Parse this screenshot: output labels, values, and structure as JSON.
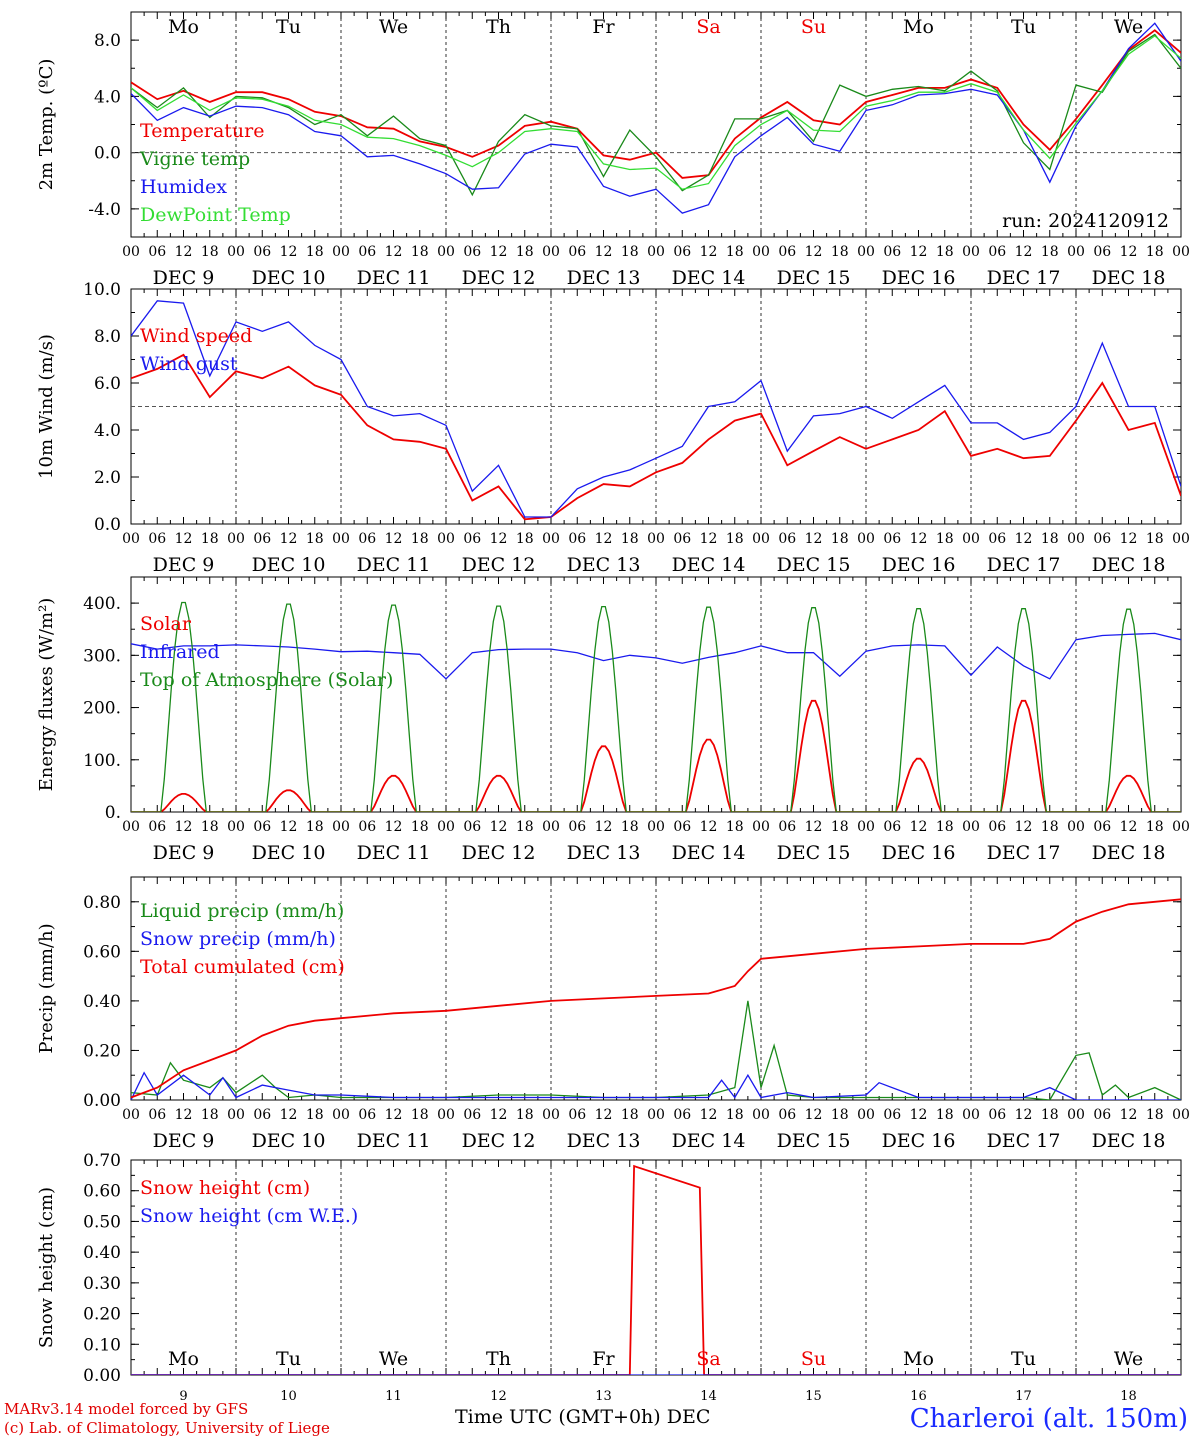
{
  "meta": {
    "footer_line1": "MARv3.14 model forced by GFS",
    "footer_line2": "(c) Lab. of Climatology, University of Liege",
    "station": "Charleroi (alt. 150m)",
    "time_axis_title": "Time UTC (GMT+0h) DEC",
    "run": "run: 2024120912"
  },
  "colors": {
    "red": "#ee0000",
    "green": "#1a8a1a",
    "blue": "#1a1aee",
    "lightgreen": "#33dd33",
    "weekend": "#ee0000"
  },
  "days": {
    "weekdays": [
      "Mo",
      "Tu",
      "We",
      "Th",
      "Fr",
      "Sa",
      "Su",
      "Mo",
      "Tu",
      "We"
    ],
    "weekend_index": [
      5,
      6
    ],
    "date_labels": [
      "DEC  9",
      "DEC 10",
      "DEC 11",
      "DEC 12",
      "DEC 13",
      "DEC 14",
      "DEC 15",
      "DEC 16",
      "DEC 17",
      "DEC 18"
    ],
    "day_numbers": [
      "9",
      "10",
      "11",
      "12",
      "13",
      "14",
      "15",
      "16",
      "17",
      "18"
    ],
    "hour_ticks": [
      "00",
      "06",
      "12",
      "18"
    ],
    "final_tick": "00"
  },
  "chart_data": [
    {
      "type": "line",
      "id": "temp",
      "ylabel": "2m Temp. (ºC)",
      "ylim": [
        -6,
        10
      ],
      "yticks": [
        "-4.0",
        "0.0",
        "4.0",
        "8.0"
      ],
      "ytick_values": [
        -4,
        0,
        4,
        8
      ],
      "ref_line": 0,
      "x_hours_start": 0,
      "x_hours_end": 240,
      "annotation": "run: 2024120912",
      "series": [
        {
          "name": "Temperature",
          "color": "red",
          "x": [
            0,
            6,
            12,
            18,
            24,
            30,
            36,
            42,
            48,
            54,
            60,
            66,
            72,
            78,
            84,
            90,
            96,
            102,
            108,
            114,
            120,
            126,
            132,
            138,
            144,
            150,
            156,
            162,
            168,
            174,
            180,
            186,
            192,
            198,
            204,
            210,
            216,
            222,
            228,
            234,
            240
          ],
          "values": [
            5.0,
            3.8,
            4.4,
            3.6,
            4.3,
            4.3,
            3.8,
            2.9,
            2.6,
            1.8,
            1.7,
            0.8,
            0.4,
            -0.3,
            0.5,
            1.9,
            2.2,
            1.7,
            -0.2,
            -0.5,
            0.0,
            -1.8,
            -1.6,
            1.0,
            2.5,
            3.6,
            2.3,
            2.0,
            3.6,
            4.1,
            4.6,
            4.6,
            5.2,
            4.6,
            2.0,
            0.2,
            2.4,
            4.8,
            7.3,
            8.7,
            7.1
          ]
        },
        {
          "name": "Vigne temp",
          "color": "green",
          "x": [
            0,
            6,
            12,
            18,
            24,
            30,
            36,
            42,
            48,
            54,
            60,
            66,
            72,
            78,
            84,
            90,
            96,
            102,
            108,
            114,
            120,
            126,
            132,
            138,
            144,
            150,
            156,
            162,
            168,
            174,
            180,
            186,
            192,
            198,
            204,
            210,
            216,
            222,
            228,
            234,
            240
          ],
          "values": [
            4.6,
            3.2,
            4.6,
            2.5,
            4.0,
            3.9,
            3.2,
            2.0,
            2.7,
            1.2,
            2.6,
            1.0,
            0.5,
            -3.0,
            0.8,
            2.7,
            1.9,
            1.7,
            -1.7,
            1.6,
            -0.3,
            -2.7,
            -1.6,
            2.4,
            2.4,
            3.0,
            0.8,
            4.8,
            4.0,
            4.5,
            4.7,
            4.4,
            5.8,
            4.4,
            0.7,
            -1.2,
            4.8,
            4.3,
            7.2,
            8.4,
            6.0
          ]
        },
        {
          "name": "Humidex",
          "color": "blue",
          "x": [
            0,
            6,
            12,
            18,
            24,
            30,
            36,
            42,
            48,
            54,
            60,
            66,
            72,
            78,
            84,
            90,
            96,
            102,
            108,
            114,
            120,
            126,
            132,
            138,
            144,
            150,
            156,
            162,
            168,
            174,
            180,
            186,
            192,
            198,
            204,
            210,
            216,
            222,
            228,
            234,
            240
          ],
          "values": [
            4.2,
            2.3,
            3.2,
            2.6,
            3.3,
            3.2,
            2.7,
            1.5,
            1.2,
            -0.3,
            -0.2,
            -0.8,
            -1.5,
            -2.6,
            -2.5,
            -0.1,
            0.6,
            0.4,
            -2.4,
            -3.1,
            -2.6,
            -4.3,
            -3.7,
            -0.3,
            1.2,
            2.5,
            0.6,
            0.1,
            3.0,
            3.4,
            4.1,
            4.2,
            4.5,
            4.1,
            1.6,
            -2.1,
            1.9,
            4.4,
            7.4,
            9.2,
            6.5
          ]
        },
        {
          "name": "DewPoint Temp",
          "color": "lightgreen",
          "x": [
            0,
            6,
            12,
            18,
            24,
            30,
            36,
            42,
            48,
            54,
            60,
            66,
            72,
            78,
            84,
            90,
            96,
            102,
            108,
            114,
            120,
            126,
            132,
            138,
            144,
            150,
            156,
            162,
            168,
            174,
            180,
            186,
            192,
            198,
            204,
            210,
            216,
            222,
            228,
            234,
            240
          ],
          "values": [
            4.6,
            3.0,
            4.1,
            3.0,
            3.9,
            3.8,
            3.3,
            2.3,
            2.0,
            1.1,
            1.0,
            0.5,
            -0.2,
            -1.0,
            0.0,
            1.5,
            1.7,
            1.5,
            -0.8,
            -1.2,
            -1.1,
            -2.6,
            -2.2,
            0.5,
            2.0,
            3.0,
            1.6,
            1.5,
            3.3,
            3.7,
            4.3,
            4.3,
            4.9,
            4.3,
            1.6,
            -0.4,
            2.1,
            4.4,
            7.0,
            8.3,
            6.7
          ]
        }
      ]
    },
    {
      "type": "line",
      "id": "wind",
      "ylabel": "10m Wind (m/s)",
      "ylim": [
        0,
        10
      ],
      "yticks": [
        "0.0",
        "2.0",
        "4.0",
        "6.0",
        "8.0",
        "10.0"
      ],
      "ytick_values": [
        0,
        2,
        4,
        6,
        8,
        10
      ],
      "ref_line": 5,
      "series": [
        {
          "name": "Wind speed",
          "color": "red",
          "x": [
            0,
            6,
            12,
            18,
            24,
            30,
            36,
            42,
            48,
            54,
            60,
            66,
            72,
            78,
            84,
            90,
            96,
            102,
            108,
            114,
            120,
            126,
            132,
            138,
            144,
            150,
            156,
            162,
            168,
            174,
            180,
            186,
            192,
            198,
            204,
            210,
            216,
            222,
            228,
            234,
            240
          ],
          "values": [
            6.2,
            6.6,
            7.2,
            5.4,
            6.5,
            6.2,
            6.7,
            5.9,
            5.5,
            4.2,
            3.6,
            3.5,
            3.2,
            1.0,
            1.6,
            0.2,
            0.3,
            1.1,
            1.7,
            1.6,
            2.2,
            2.6,
            3.6,
            4.4,
            4.7,
            2.5,
            3.1,
            3.7,
            3.2,
            3.6,
            4.0,
            4.8,
            2.9,
            3.2,
            2.8,
            2.9,
            4.4,
            6.0,
            4.0,
            4.3,
            1.2
          ]
        },
        {
          "name": "Wind gust",
          "color": "blue",
          "x": [
            0,
            6,
            12,
            18,
            24,
            30,
            36,
            42,
            48,
            54,
            60,
            66,
            72,
            78,
            84,
            90,
            96,
            102,
            108,
            114,
            120,
            126,
            132,
            138,
            144,
            150,
            156,
            162,
            168,
            174,
            180,
            186,
            192,
            198,
            204,
            210,
            216,
            222,
            228,
            234,
            240
          ],
          "values": [
            8.0,
            9.5,
            9.4,
            6.3,
            8.6,
            8.2,
            8.6,
            7.6,
            7.0,
            5.0,
            4.6,
            4.7,
            4.2,
            1.4,
            2.5,
            0.3,
            0.3,
            1.5,
            2.0,
            2.3,
            2.8,
            3.3,
            5.0,
            5.2,
            6.1,
            3.1,
            4.6,
            4.7,
            5.0,
            4.5,
            5.2,
            5.9,
            4.3,
            4.3,
            3.6,
            3.9,
            5.0,
            7.7,
            5.0,
            5.0,
            1.6
          ]
        }
      ]
    },
    {
      "type": "line",
      "id": "energy",
      "ylabel": "Energy fluxes (W/m²)",
      "ylim": [
        0,
        450
      ],
      "yticks": [
        "0.",
        "100.",
        "200.",
        "300.",
        "400."
      ],
      "ytick_values": [
        0,
        100,
        200,
        300,
        400
      ],
      "series": [
        {
          "name": "Solar",
          "color": "red",
          "peaks": [
            [
              12,
              35
            ],
            [
              36,
              42
            ],
            [
              60,
              70
            ],
            [
              84,
              70
            ],
            [
              108,
              127
            ],
            [
              132,
              140
            ],
            [
              156,
              215
            ],
            [
              180,
              103
            ],
            [
              204,
              215
            ],
            [
              228,
              70
            ]
          ]
        },
        {
          "name": "Infrared",
          "color": "blue",
          "x": [
            0,
            6,
            12,
            18,
            24,
            30,
            36,
            42,
            48,
            54,
            60,
            66,
            72,
            78,
            84,
            90,
            96,
            102,
            108,
            114,
            120,
            126,
            132,
            138,
            144,
            150,
            156,
            162,
            168,
            174,
            180,
            186,
            192,
            198,
            204,
            210,
            216,
            222,
            228,
            234,
            240
          ],
          "values": [
            322,
            312,
            318,
            318,
            320,
            318,
            316,
            312,
            307,
            308,
            305,
            302,
            255,
            305,
            311,
            312,
            312,
            305,
            290,
            300,
            295,
            285,
            296,
            305,
            318,
            305,
            305,
            260,
            308,
            318,
            320,
            318,
            262,
            316,
            280,
            255,
            330,
            338,
            340,
            342,
            330
          ]
        },
        {
          "name": "Top of Atmosphere (Solar)",
          "color": "green",
          "peaks": [
            [
              12,
              405
            ],
            [
              36,
              402
            ],
            [
              60,
              400
            ],
            [
              84,
              398
            ],
            [
              108,
              397
            ],
            [
              132,
              396
            ],
            [
              156,
              395
            ],
            [
              180,
              393
            ],
            [
              204,
              393
            ],
            [
              228,
              392
            ]
          ]
        }
      ]
    },
    {
      "type": "line",
      "id": "precip",
      "ylabel": "Precip (mm/h)",
      "ylim": [
        0,
        0.9
      ],
      "yticks": [
        "0.00",
        "0.20",
        "0.40",
        "0.60",
        "0.80"
      ],
      "ytick_values": [
        0,
        0.2,
        0.4,
        0.6,
        0.8
      ],
      "series": [
        {
          "name": "Liquid precip (mm/h)",
          "color": "green",
          "x": [
            0,
            6,
            9,
            12,
            18,
            21,
            24,
            30,
            33,
            36,
            42,
            48,
            60,
            72,
            84,
            96,
            108,
            120,
            132,
            138,
            141,
            144,
            147,
            150,
            156,
            168,
            180,
            192,
            204,
            210,
            216,
            219,
            222,
            225,
            228,
            234,
            240
          ],
          "values": [
            0.03,
            0.02,
            0.15,
            0.08,
            0.05,
            0.09,
            0.03,
            0.1,
            0.05,
            0.01,
            0.02,
            0.01,
            0.01,
            0.01,
            0.02,
            0.02,
            0.01,
            0.01,
            0.02,
            0.05,
            0.4,
            0.05,
            0.22,
            0.02,
            0.01,
            0.01,
            0.01,
            0.01,
            0.01,
            0.0,
            0.18,
            0.19,
            0.02,
            0.06,
            0.01,
            0.05,
            0.0
          ]
        },
        {
          "name": "Snow precip (mm/h)",
          "color": "blue",
          "x": [
            0,
            3,
            6,
            12,
            18,
            21,
            24,
            30,
            36,
            42,
            48,
            60,
            72,
            84,
            96,
            108,
            120,
            132,
            135,
            138,
            141,
            144,
            150,
            156,
            168,
            171,
            180,
            192,
            204,
            210,
            216,
            222,
            228,
            234,
            240
          ],
          "values": [
            0.0,
            0.11,
            0.02,
            0.1,
            0.02,
            0.09,
            0.01,
            0.06,
            0.04,
            0.02,
            0.02,
            0.01,
            0.01,
            0.01,
            0.01,
            0.01,
            0.01,
            0.01,
            0.08,
            0.01,
            0.1,
            0.01,
            0.03,
            0.01,
            0.02,
            0.07,
            0.01,
            0.01,
            0.01,
            0.05,
            0.0,
            0.0,
            0.0,
            0.0,
            0.0
          ]
        },
        {
          "name": "Total cumulated (cm)",
          "color": "red",
          "x": [
            0,
            6,
            12,
            18,
            24,
            30,
            36,
            42,
            48,
            60,
            72,
            84,
            96,
            108,
            120,
            132,
            138,
            141,
            144,
            150,
            156,
            168,
            180,
            192,
            204,
            210,
            216,
            222,
            228,
            234,
            240
          ],
          "values": [
            0.01,
            0.05,
            0.12,
            0.16,
            0.2,
            0.26,
            0.3,
            0.32,
            0.33,
            0.35,
            0.36,
            0.38,
            0.4,
            0.41,
            0.42,
            0.43,
            0.46,
            0.52,
            0.57,
            0.58,
            0.59,
            0.61,
            0.62,
            0.63,
            0.63,
            0.65,
            0.72,
            0.76,
            0.79,
            0.8,
            0.81
          ]
        }
      ]
    },
    {
      "type": "line",
      "id": "snow",
      "ylabel": "Snow height (cm)",
      "ylim": [
        0,
        0.7
      ],
      "yticks": [
        "0.00",
        "0.10",
        "0.20",
        "0.30",
        "0.40",
        "0.50",
        "0.60",
        "0.70"
      ],
      "ytick_values": [
        0,
        0.1,
        0.2,
        0.3,
        0.4,
        0.5,
        0.6,
        0.7
      ],
      "series": [
        {
          "name": "Snow height (cm)",
          "color": "red",
          "x": [
            0,
            114,
            115,
            130,
            131,
            240
          ],
          "values": [
            0,
            0,
            0.68,
            0.61,
            0,
            0
          ]
        },
        {
          "name": "Snow height (cm W.E.)",
          "color": "blue",
          "x": [
            0,
            240
          ],
          "values": [
            0,
            0
          ]
        }
      ]
    }
  ]
}
